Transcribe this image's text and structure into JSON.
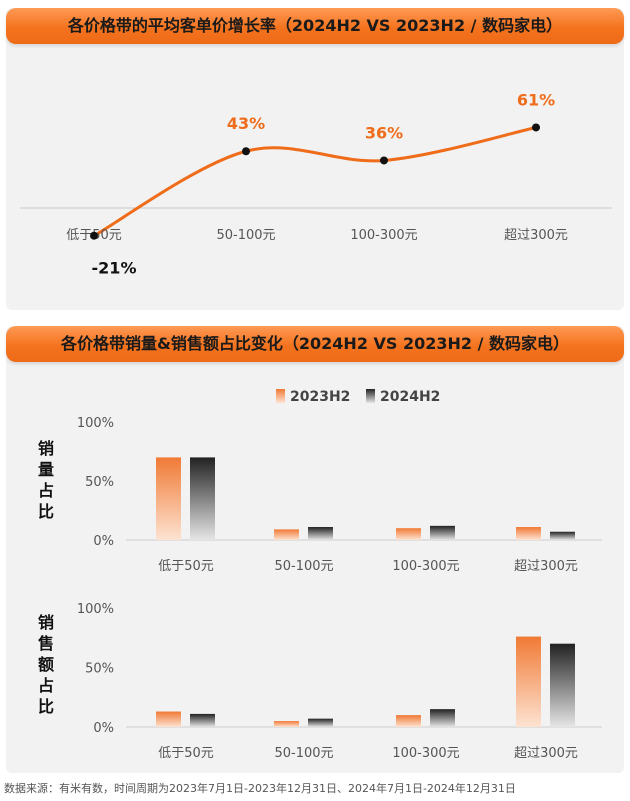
{
  "top_panel": {
    "title": "各价格带的平均客单价增长率（2024H2 VS 2023H2 / 数码家电）"
  },
  "bottom_panel": {
    "title": "各价格带销量&销售额占比变化（2024H2 VS 2023H2 / 数码家电）"
  },
  "footer": {
    "source": "数据来源：有米有数，时间周期为2023年7月1日-2023年12月31日、2024年7月1日-2024年12月31日"
  },
  "colors": {
    "accent": "#ef6c1a",
    "series_2023": "#f07a35",
    "series_2024": "#222222",
    "panel_bg": "#f2f2f2"
  },
  "chart_data": [
    {
      "type": "line",
      "categories": [
        "低于50元",
        "50-100元",
        "100-300元",
        "超过300元"
      ],
      "values": [
        -21,
        43,
        36,
        61
      ],
      "data_labels": [
        "-21%",
        "43%",
        "36%",
        "61%"
      ],
      "title": "",
      "xlabel": "",
      "ylabel": "",
      "ylim": [
        -30,
        70
      ],
      "grid": false
    },
    {
      "type": "bar",
      "categories": [
        "低于50元",
        "50-100元",
        "100-300元",
        "超过300元"
      ],
      "series": [
        {
          "name": "2023H2",
          "values": [
            70,
            9,
            10,
            11
          ]
        },
        {
          "name": "2024H2",
          "values": [
            70,
            11,
            12,
            7
          ]
        }
      ],
      "ylabel": "销量占比",
      "yticks": [
        "100%",
        "50%",
        "0%"
      ],
      "ylim": [
        0,
        100
      ],
      "legend": "top-center"
    },
    {
      "type": "bar",
      "categories": [
        "低于50元",
        "50-100元",
        "100-300元",
        "超过300元"
      ],
      "series": [
        {
          "name": "2023H2",
          "values": [
            13,
            5,
            10,
            76
          ]
        },
        {
          "name": "2024H2",
          "values": [
            11,
            7,
            15,
            70
          ]
        }
      ],
      "ylabel": "销售额占比",
      "yticks": [
        "100%",
        "50%",
        "0%"
      ],
      "ylim": [
        0,
        100
      ]
    }
  ]
}
